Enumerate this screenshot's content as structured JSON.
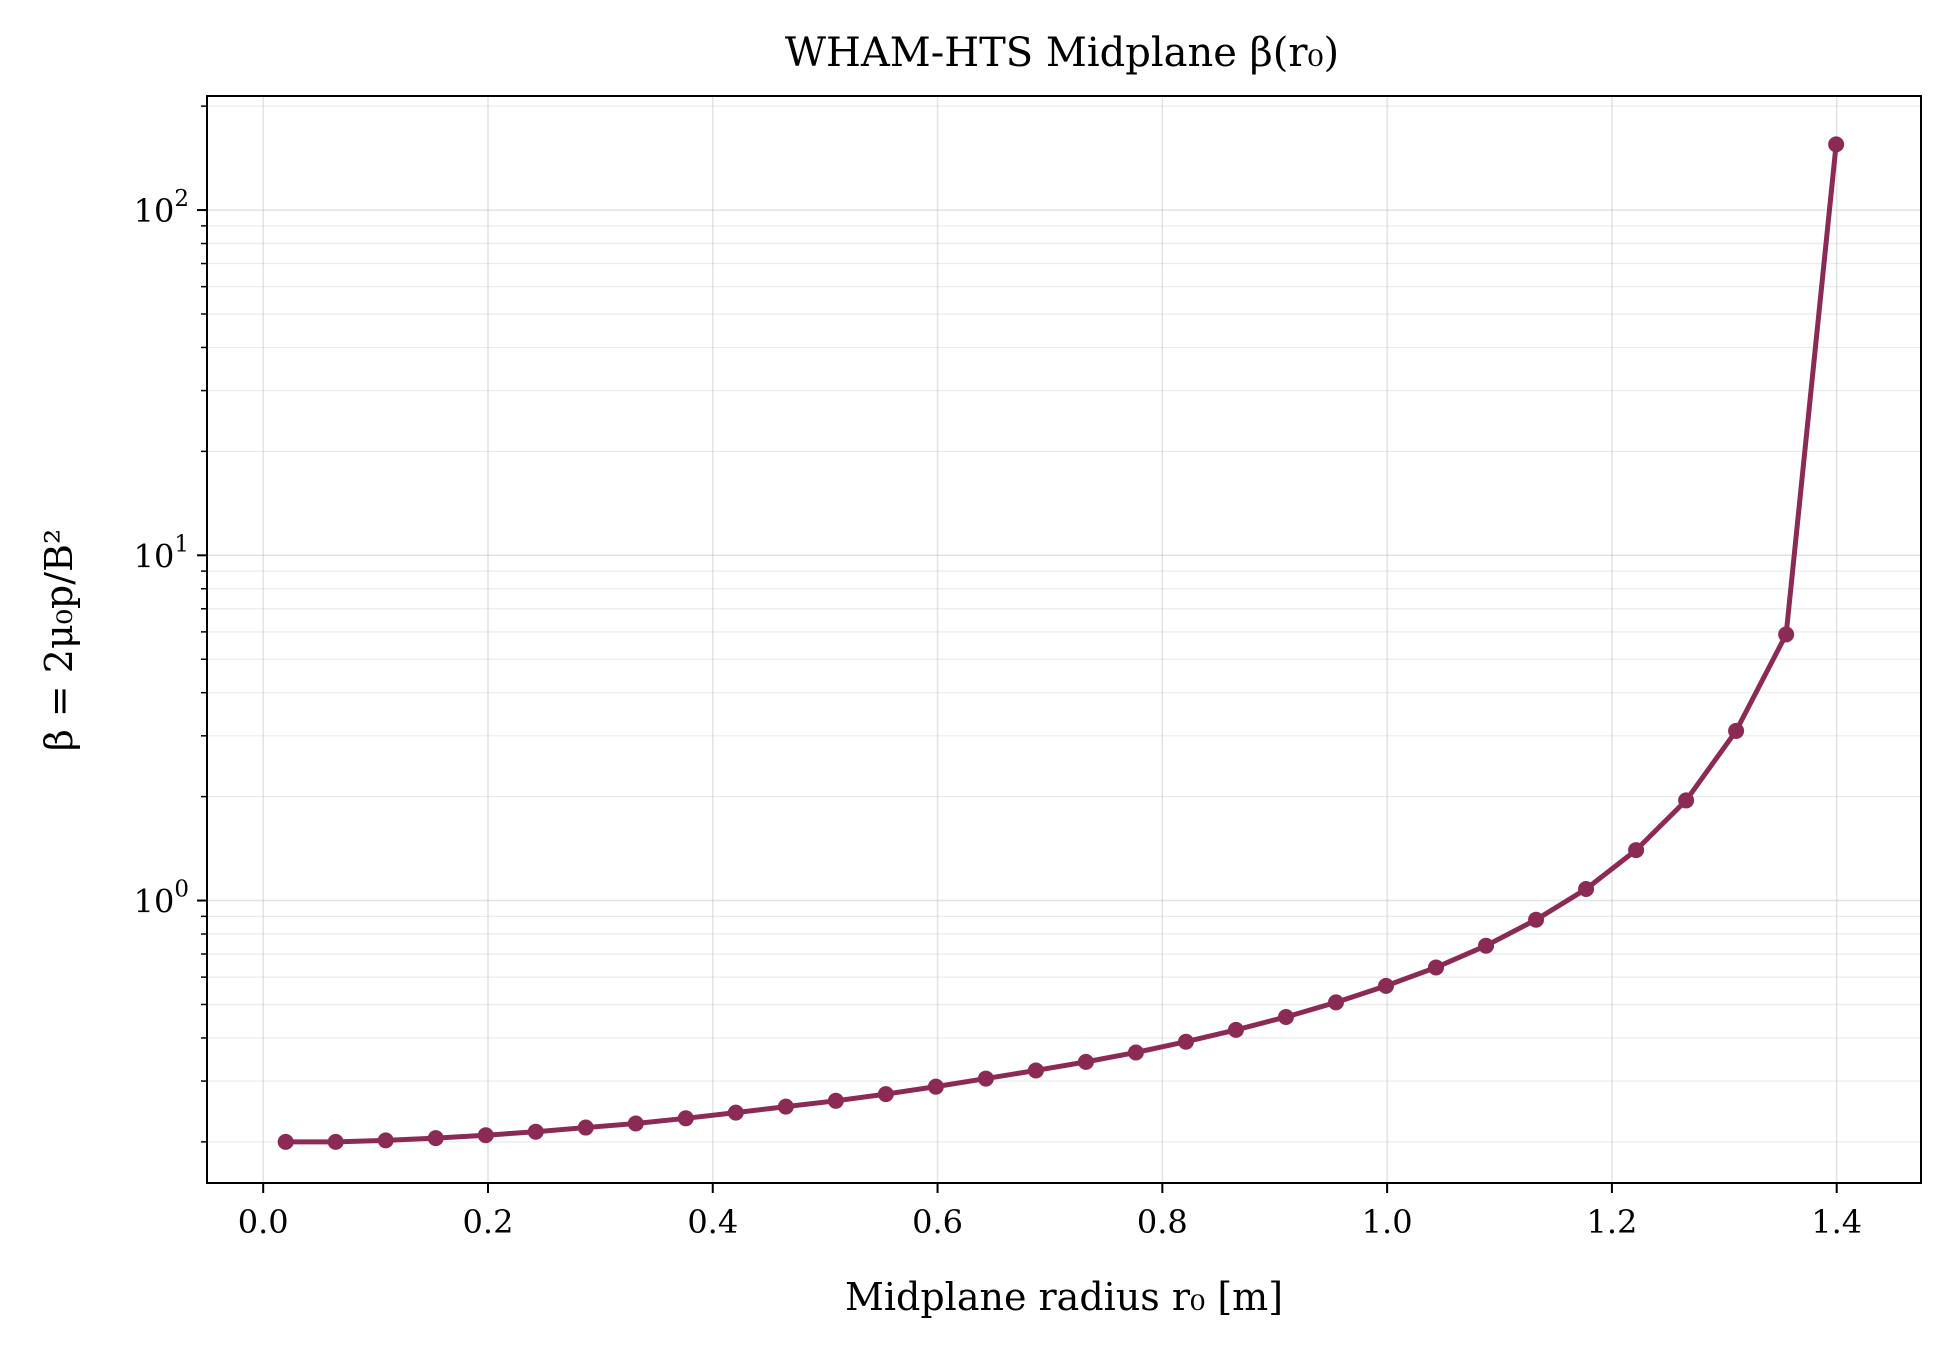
{
  "chart_data": {
    "type": "line",
    "title": "WHAM-HTS Midplane β(r₀)",
    "xlabel": "Midplane radius r₀ [m]",
    "ylabel": "β = 2μ₀p/B²",
    "xlim": [
      -0.05,
      1.475
    ],
    "ylim": [
      0.152,
      214
    ],
    "yscale": "log",
    "grid": true,
    "x_ticks": [
      0.0,
      0.2,
      0.4,
      0.6,
      0.8,
      1.0,
      1.2,
      1.4
    ],
    "x_tick_labels": [
      "0.0",
      "0.2",
      "0.4",
      "0.6",
      "0.8",
      "1.0",
      "1.2",
      "1.4"
    ],
    "y_ticks": [
      {
        "value": 1,
        "base": "10",
        "exp": "0"
      },
      {
        "value": 10,
        "base": "10",
        "exp": "1"
      },
      {
        "value": 100,
        "base": "10",
        "exp": "2"
      }
    ],
    "series": [
      {
        "color": "#8B2A55",
        "x": [
          0.02,
          0.0645,
          0.109,
          0.1535,
          0.198,
          0.2425,
          0.287,
          0.3315,
          0.376,
          0.4205,
          0.465,
          0.5095,
          0.554,
          0.5985,
          0.643,
          0.6875,
          0.732,
          0.7765,
          0.821,
          0.8655,
          0.91,
          0.9545,
          0.999,
          1.0435,
          1.088,
          1.1325,
          1.177,
          1.2215,
          1.266,
          1.3105,
          1.355,
          1.3995
        ],
        "y": [
          0.2,
          0.2,
          0.202,
          0.205,
          0.209,
          0.214,
          0.22,
          0.226,
          0.234,
          0.243,
          0.253,
          0.263,
          0.275,
          0.289,
          0.305,
          0.322,
          0.341,
          0.363,
          0.39,
          0.422,
          0.46,
          0.507,
          0.566,
          0.64,
          0.74,
          0.88,
          1.08,
          1.4,
          1.95,
          3.1,
          5.9,
          155
        ]
      }
    ]
  }
}
